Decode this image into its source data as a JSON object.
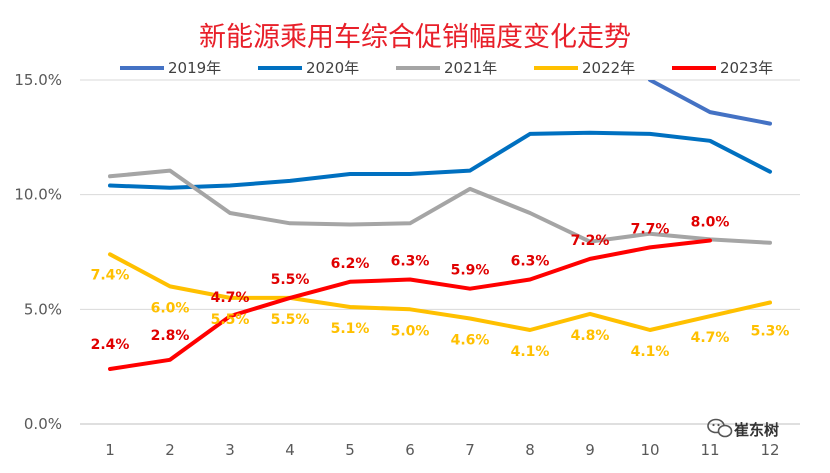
{
  "chart_data": {
    "type": "line",
    "title": "新能源乘用车综合促销幅度变化走势",
    "xlabel": "",
    "ylabel": "",
    "x": [
      "1",
      "2",
      "3",
      "4",
      "5",
      "6",
      "7",
      "8",
      "9",
      "10",
      "11",
      "12"
    ],
    "ylim": [
      0,
      15
    ],
    "yticks": [
      0,
      5,
      10,
      15
    ],
    "ytick_labels": [
      "0.0%",
      "5.0%",
      "10.0%",
      "15.0%"
    ],
    "grid": "horizontal",
    "legend_position": "top",
    "series": [
      {
        "name": "2019年",
        "color": "#4472c4",
        "values": [
          null,
          null,
          null,
          null,
          null,
          null,
          null,
          null,
          null,
          15.0,
          13.6,
          13.1
        ],
        "labels": null
      },
      {
        "name": "2020年",
        "color": "#0070c0",
        "values": [
          10.4,
          10.3,
          10.4,
          10.6,
          10.9,
          10.9,
          11.05,
          12.65,
          12.7,
          12.65,
          12.35,
          11.0
        ],
        "labels": null
      },
      {
        "name": "2021年",
        "color": "#a5a5a5",
        "values": [
          10.8,
          11.05,
          9.2,
          8.75,
          8.7,
          8.75,
          10.25,
          9.2,
          7.95,
          8.3,
          8.05,
          7.9
        ],
        "labels": null
      },
      {
        "name": "2022年",
        "color": "#ffc000",
        "values": [
          7.4,
          6.0,
          5.5,
          5.5,
          5.1,
          5.0,
          4.6,
          4.1,
          4.8,
          4.1,
          4.7,
          5.3
        ],
        "labels": [
          "7.4%",
          "6.0%",
          "5.5%",
          "5.5%",
          "5.1%",
          "5.0%",
          "4.6%",
          "4.1%",
          "4.8%",
          "4.1%",
          "4.7%",
          "5.3%"
        ]
      },
      {
        "name": "2023年",
        "color": "#ff0000",
        "values": [
          2.4,
          2.8,
          4.7,
          5.5,
          6.2,
          6.3,
          5.9,
          6.3,
          7.2,
          7.7,
          8.0,
          null
        ],
        "labels": [
          "2.4%",
          "2.8%",
          "4.7%",
          "5.5%",
          "6.2%",
          "6.3%",
          "5.9%",
          "6.3%",
          "7.2%",
          "7.7%",
          "8.0%",
          null
        ]
      }
    ]
  },
  "watermark": {
    "text": "崔东树",
    "icon": "wechat-icon"
  }
}
